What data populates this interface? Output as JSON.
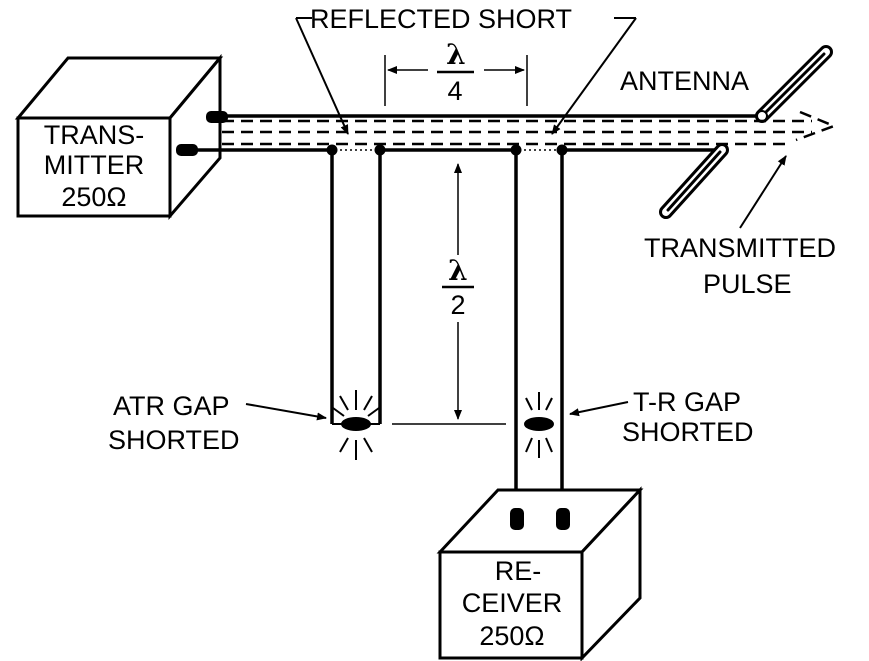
{
  "labels": {
    "reflected_short": "REFLECTED SHORT",
    "antenna": "ANTENNA",
    "transmitted_pulse_1": "TRANSMITTED",
    "transmitted_pulse_2": "PULSE",
    "atr_gap_1": "ATR GAP",
    "atr_gap_2": "SHORTED",
    "tr_gap_1": "T-R GAP",
    "tr_gap_2": "SHORTED"
  },
  "transmitter": {
    "line1": "TRANS-",
    "line2": "MITTER",
    "line3": "250Ω"
  },
  "receiver": {
    "line1": "RE-",
    "line2": "CEIVER",
    "line3": "250Ω"
  },
  "quarter_wave": {
    "numerator": "λ",
    "denominator": "4"
  },
  "half_wave": {
    "numerator": "λ",
    "denominator": "2"
  }
}
